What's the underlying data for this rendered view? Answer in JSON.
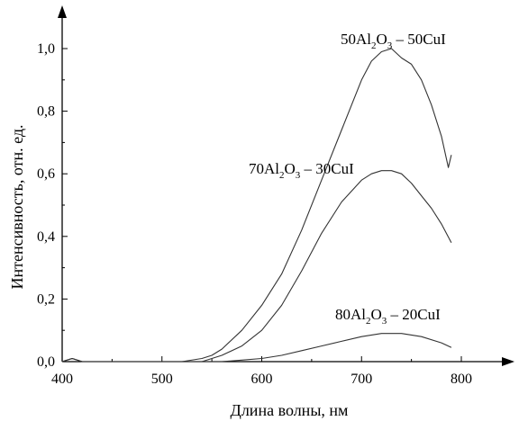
{
  "chart_data": {
    "type": "line",
    "xlabel": "Длина волны, нм",
    "ylabel": "Интенсивность, отн. ед.",
    "xlim": [
      400,
      800
    ],
    "ylim": [
      0,
      1.1
    ],
    "x_ticks": [
      400,
      500,
      600,
      700,
      800
    ],
    "y_ticks": [
      0,
      0.2,
      0.4,
      0.6,
      0.8,
      1.0
    ],
    "x_tick_labels": [
      "400",
      "500",
      "600",
      "700",
      "800"
    ],
    "y_tick_labels": [
      "0,0",
      "0,2",
      "0,4",
      "0,6",
      "0,8",
      "1,0"
    ],
    "grid": false,
    "series": [
      {
        "name": "50Al2O3 – 50CuI",
        "label_parts": [
          "50Al",
          "2",
          "O",
          "3",
          " – 50CuI"
        ],
        "x": [
          400,
          410,
          420,
          450,
          500,
          520,
          540,
          550,
          560,
          580,
          600,
          620,
          640,
          660,
          680,
          700,
          710,
          720,
          730,
          740,
          750,
          760,
          770,
          780,
          787,
          790
        ],
        "y": [
          0.0,
          0.01,
          0.0,
          0.0,
          0.0,
          0.0,
          0.01,
          0.02,
          0.04,
          0.1,
          0.18,
          0.28,
          0.42,
          0.58,
          0.74,
          0.9,
          0.96,
          0.99,
          1.0,
          0.97,
          0.95,
          0.9,
          0.82,
          0.72,
          0.62,
          0.66
        ],
        "color": "#333333"
      },
      {
        "name": "70Al2O3 – 30CuI",
        "label_parts": [
          "70Al",
          "2",
          "O",
          "3",
          " – 30CuI"
        ],
        "x": [
          400,
          410,
          420,
          450,
          500,
          540,
          560,
          580,
          600,
          620,
          640,
          660,
          680,
          700,
          710,
          720,
          730,
          740,
          750,
          760,
          770,
          780,
          790
        ],
        "y": [
          0.0,
          0.01,
          0.0,
          0.0,
          0.0,
          0.0,
          0.02,
          0.05,
          0.1,
          0.18,
          0.29,
          0.41,
          0.51,
          0.58,
          0.6,
          0.61,
          0.61,
          0.6,
          0.57,
          0.53,
          0.49,
          0.44,
          0.38
        ],
        "color": "#333333"
      },
      {
        "name": "80Al2O3 – 20CuI",
        "label_parts": [
          "80Al",
          "2",
          "O",
          "3",
          " – 20CuI"
        ],
        "x": [
          400,
          410,
          420,
          450,
          500,
          540,
          560,
          580,
          600,
          620,
          640,
          660,
          680,
          700,
          720,
          740,
          760,
          780,
          790
        ],
        "y": [
          0.0,
          0.01,
          0.0,
          0.0,
          0.0,
          0.0,
          0.0,
          0.005,
          0.01,
          0.02,
          0.035,
          0.05,
          0.065,
          0.08,
          0.09,
          0.09,
          0.08,
          0.06,
          0.045
        ],
        "color": "#333333"
      }
    ]
  }
}
